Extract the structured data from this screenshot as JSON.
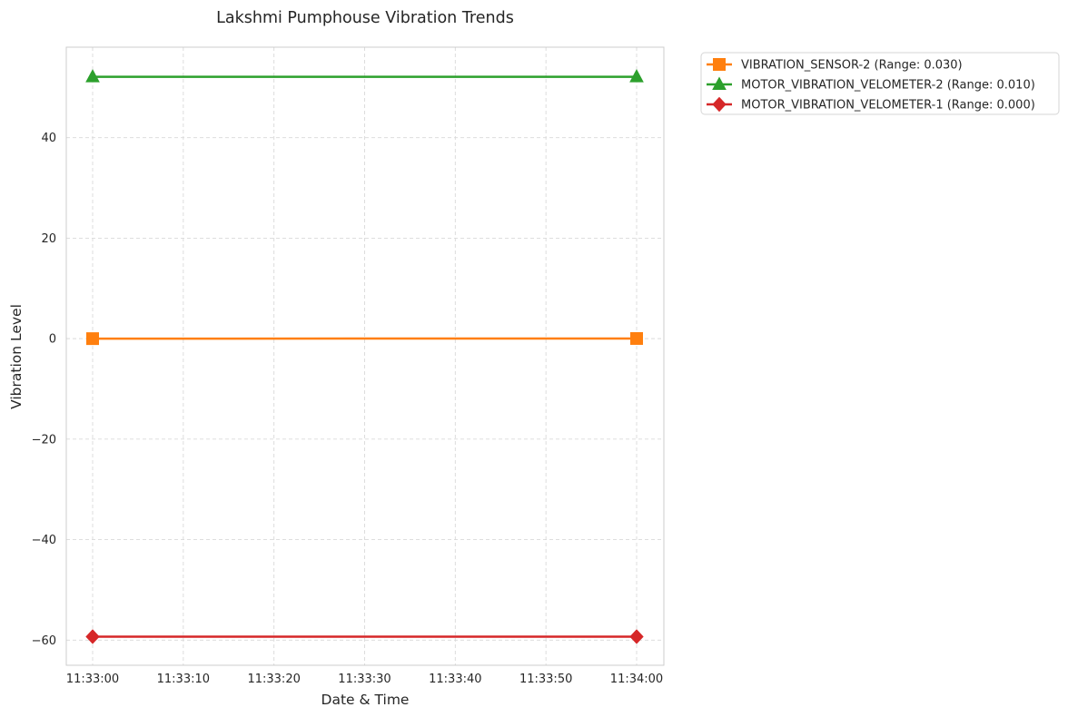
{
  "chart_data": {
    "type": "line",
    "title": "Lakshmi Pumphouse Vibration Trends",
    "xlabel": "Date & Time",
    "ylabel": "Vibration Level",
    "x": [
      "11:33:00",
      "11:34:00"
    ],
    "x_ticks": [
      "11:33:00",
      "11:33:10",
      "11:33:20",
      "11:33:30",
      "11:33:40",
      "11:33:50",
      "11:34:00"
    ],
    "y_ticks": [
      -60,
      -40,
      -20,
      0,
      20,
      40
    ],
    "y_tick_labels": [
      "−60",
      "−40",
      "−20",
      "0",
      "20",
      "40"
    ],
    "ylim": [
      -65,
      58
    ],
    "grid": true,
    "legend_position": "outside-top-right",
    "series": [
      {
        "name": "VIBRATION_SENSOR-2 (Range: 0.030)",
        "values": [
          0.0,
          0.03
        ],
        "color": "#ff7f0e",
        "marker": "square"
      },
      {
        "name": "MOTOR_VIBRATION_VELOMETER-2 (Range: 0.010)",
        "values": [
          52.1,
          52.11
        ],
        "color": "#2ca02c",
        "marker": "triangle"
      },
      {
        "name": "MOTOR_VIBRATION_VELOMETER-1 (Range: 0.000)",
        "values": [
          -59.3,
          -59.3
        ],
        "color": "#d62728",
        "marker": "diamond"
      }
    ]
  }
}
